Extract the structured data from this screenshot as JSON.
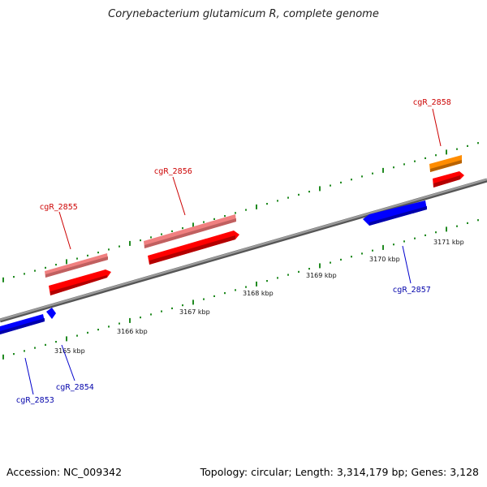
{
  "title": "Corynebacterium glutamicum R, complete genome",
  "footer": {
    "accession": "Accession: NC_009342",
    "summary": "Topology: circular; Length: 3,314,179 bp; Genes: 3,128"
  },
  "colors": {
    "backbone": "#808080",
    "tick": "#228b22",
    "forward_cds": "#ff0000",
    "forward_gene": "#f08080",
    "reverse_cds": "#0000ff",
    "other_gene": "#ff8c00",
    "label_forward": "#cc0000",
    "label_reverse": "#0000aa"
  },
  "scale": {
    "unit": "kbp",
    "labels": [
      "3165 kbp",
      "3166 kbp",
      "3167 kbp",
      "3168 kbp",
      "3169 kbp",
      "3170 kbp",
      "3171 kbp"
    ]
  },
  "genes": [
    {
      "label": "cgR_2853",
      "strand": "reverse"
    },
    {
      "label": "cgR_2854",
      "strand": "reverse"
    },
    {
      "label": "cgR_2855",
      "strand": "forward"
    },
    {
      "label": "cgR_2856",
      "strand": "forward"
    },
    {
      "label": "cgR_2857",
      "strand": "reverse"
    },
    {
      "label": "cgR_2858",
      "strand": "forward"
    }
  ]
}
